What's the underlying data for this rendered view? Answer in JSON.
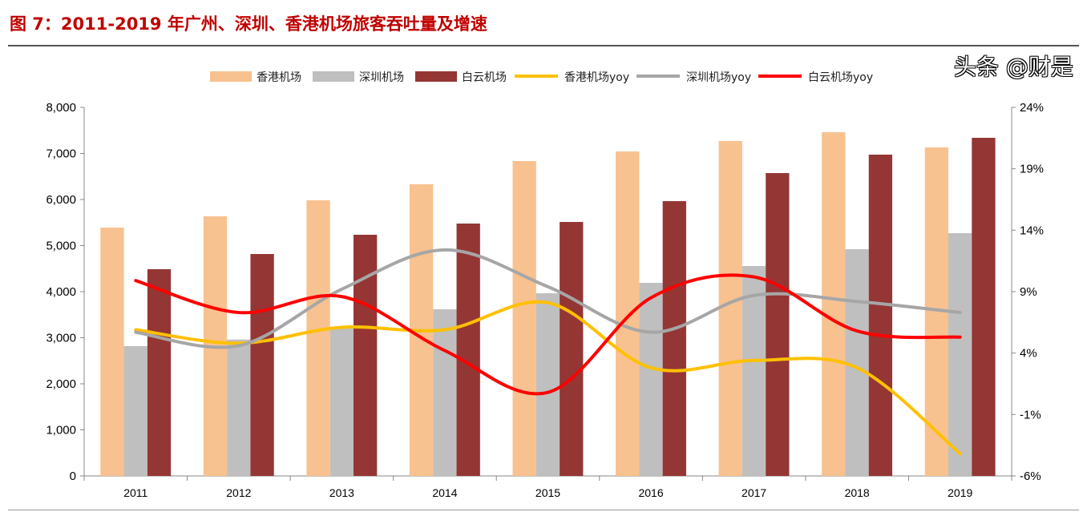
{
  "title": "图 7：2011-2019 年广州、深圳、香港机场旅客吞吐量及增速",
  "watermark": "头条 @财是",
  "chart_data": {
    "type": "bar+line",
    "categories": [
      "2011",
      "2012",
      "2013",
      "2014",
      "2015",
      "2016",
      "2017",
      "2018",
      "2019"
    ],
    "left_axis": {
      "ylim": [
        0,
        8000
      ],
      "ticks": [
        "0",
        "1,000",
        "2,000",
        "3,000",
        "4,000",
        "5,000",
        "6,000",
        "7,000",
        "8,000"
      ]
    },
    "right_axis": {
      "ylim": [
        -6,
        24
      ],
      "ticks": [
        "-6%",
        "-1%",
        "4%",
        "9%",
        "14%",
        "19%",
        "24%"
      ]
    },
    "legend_position": "top",
    "bar_series": [
      {
        "name": "香港机场",
        "color": "#f8c190",
        "values": [
          5390,
          5635,
          5983,
          6330,
          6835,
          7043,
          7270,
          7460,
          7130
        ]
      },
      {
        "name": "深圳机场",
        "color": "#bfbfbf",
        "values": [
          2817,
          2960,
          3230,
          3617,
          3965,
          4191,
          4557,
          4922,
          5270
        ]
      },
      {
        "name": "白云机场",
        "color": "#943634",
        "values": [
          4487,
          4817,
          5235,
          5478,
          5513,
          5965,
          6574,
          6974,
          7339
        ]
      }
    ],
    "line_series": [
      {
        "name": "香港机场yoy",
        "color": "#ffc000",
        "values": [
          5.9,
          4.8,
          6.1,
          5.9,
          8.1,
          2.8,
          3.4,
          2.8,
          -4.2
        ]
      },
      {
        "name": "深圳机场yoy",
        "color": "#a6a6a6",
        "values": [
          5.7,
          4.6,
          9.2,
          12.4,
          9.4,
          5.7,
          8.7,
          8.2,
          7.3
        ]
      },
      {
        "name": "白云机场yoy",
        "color": "#ff0000",
        "values": [
          9.9,
          7.3,
          8.6,
          4.2,
          0.8,
          8.5,
          10.2,
          5.8,
          5.3
        ]
      }
    ]
  }
}
